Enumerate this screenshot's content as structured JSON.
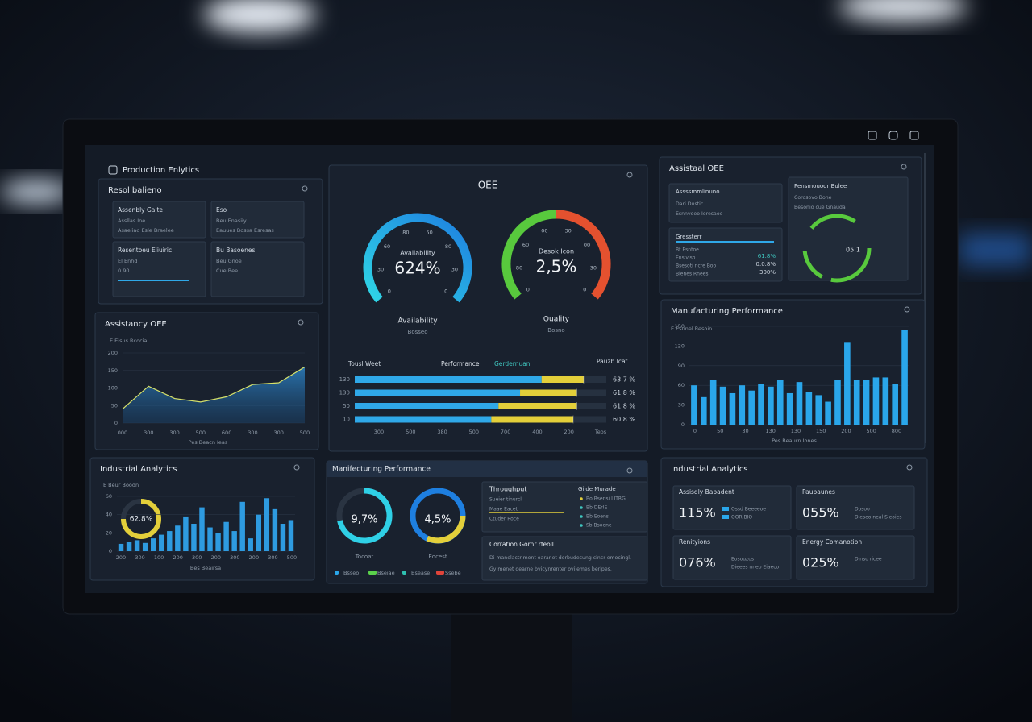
{
  "header": {
    "title": "Production Enlytics"
  },
  "panels": {
    "result": {
      "title": "Resol balieno",
      "cards": [
        {
          "title": "Assenbly Gaite",
          "lines": [
            "Assllas Ine",
            "Asaeliao Esle Braelee"
          ]
        },
        {
          "title": "Eso",
          "lines": [
            "Beu Enasiiy",
            "Eauues Bossa Esresas"
          ]
        },
        {
          "title": "Resentoeu Eliuiric",
          "lines": [
            "El Enhd",
            "0.90"
          ]
        },
        {
          "title": "Bu Basoenes",
          "lines": [
            "Beu Gnoe",
            "Cue Bee"
          ]
        }
      ]
    },
    "assist_oee": {
      "title": "Assistancy OEE",
      "subtitle": "E Eisus Rcocia",
      "x_title": "Pes Beacn Ieas",
      "chart": {
        "type": "area",
        "categories": [
          "000",
          "300",
          "300",
          "500",
          "600",
          "300",
          "300",
          "500"
        ],
        "values": [
          40,
          105,
          70,
          60,
          75,
          110,
          115,
          160
        ],
        "ylim": [
          0,
          200
        ],
        "yticks": [
          0,
          50,
          100,
          150,
          200
        ],
        "color": "#2f8fd8"
      }
    },
    "analytics_left": {
      "title": "Industrial Analytics",
      "subtitle": "E Beur Boodn",
      "donut_label": "62.8%",
      "x_title": "Bes Beairsa",
      "xlabels": [
        "200",
        "300",
        "100",
        "200",
        "300",
        "200",
        "300",
        "200",
        "300",
        "500"
      ],
      "chart": {
        "type": "bar",
        "values": [
          8,
          10,
          12,
          9,
          14,
          18,
          22,
          28,
          38,
          30,
          48,
          26,
          20,
          32,
          22,
          54,
          14,
          40,
          58,
          46,
          30,
          34
        ],
        "ylim": [
          0,
          60
        ],
        "yticks": [
          0,
          20,
          40,
          60
        ],
        "color": "#2e9be0"
      }
    },
    "oee": {
      "title": "OEE",
      "gauges": [
        {
          "inner": "Availability",
          "value_label": "624%",
          "caption": "Availability",
          "sub": "Bosseo",
          "scale": [
            "0",
            "30",
            "60",
            "80",
            "50",
            "80",
            "30",
            "0"
          ]
        },
        {
          "inner": "Desok Icon",
          "value_label": "2,5%",
          "caption": "Quality",
          "sub": "Bosno",
          "scale": [
            "0",
            "80",
            "60",
            "00",
            "30",
            "00",
            "30",
            "0"
          ]
        }
      ],
      "progress": {
        "type": "hbar",
        "left_label": "Tousl Weet",
        "right_title": "Pauzb Icat",
        "row_labels": [
          "130",
          "130",
          "50",
          "10"
        ],
        "series": [
          {
            "name": "Performance",
            "color": "#2fa8e8",
            "values": [
              52,
              46,
              40,
              38
            ]
          },
          {
            "name": "Gerdernuan",
            "color": "#e3cf3a",
            "values": [
              11.7,
              15.8,
              21.8,
              22.8
            ]
          }
        ],
        "totals": [
          63.7,
          61.8,
          61.8,
          60.8
        ],
        "total_labels": [
          "63.7 %",
          "61.8 %",
          "61.8 %",
          "60.8 %"
        ],
        "xlim": [
          0,
          70
        ],
        "xlabels": [
          "300",
          "500",
          "380",
          "500",
          "700",
          "400",
          "200",
          "Teos"
        ]
      }
    },
    "manuf_center": {
      "title": "Manifecturing Performance",
      "donuts": [
        {
          "value_label": "9,7%",
          "caption": "Tocoat"
        },
        {
          "value_label": "4,5%",
          "caption": "Eocest"
        }
      ],
      "legend": [
        "Bsseo",
        "Bseiae",
        "Bsease",
        "Ssebe"
      ],
      "throughput": {
        "title": "Throughput",
        "lines": [
          "Sueier tinurcl",
          "Maae Eacet",
          "Ctuder Roce"
        ],
        "list_title": "Gilde Murade",
        "list": [
          "Bo Bsensi LITRG",
          "Bb DErIE",
          "Bb Eoens",
          "Sb Bsoene"
        ]
      },
      "note": {
        "title": "Corration Gornr rfeoll",
        "lines": [
          "Di manelactriment oaranet dorbudecung cincr emocingl.",
          "Gy menet dearne bvicynrenter ovilemes beripes."
        ]
      }
    },
    "assistant": {
      "title": "Assistaal OEE",
      "card1": {
        "title": "Assssmmlinuno",
        "lines": [
          "Dari Dustic",
          "Esnnvoeo Ieresaoe"
        ]
      },
      "card2": {
        "title": "Gressterr",
        "lines": [
          "Bt Esntoe",
          "Ensiviso",
          "Bsesoti ncre Boo",
          "Bienes Rnees"
        ],
        "values": [
          "61.8%",
          "0.0.8%",
          "300%"
        ]
      },
      "card3": {
        "title": "Pensmouoor Bulee",
        "lines": [
          "Corosovo Bone",
          "Besonio cue Gnauda"
        ],
        "gauge_label": "05:1"
      }
    },
    "manuf_right": {
      "title": "Manufacturing Performance",
      "subtitle": "E Esunel Resoin",
      "x_title": "Pes Beaurn Iones",
      "xlabels": [
        "0",
        "50",
        "30",
        "130",
        "130",
        "150",
        "200",
        "500",
        "800"
      ],
      "chart": {
        "type": "bar",
        "values": [
          60,
          42,
          68,
          58,
          48,
          60,
          52,
          62,
          58,
          68,
          48,
          65,
          50,
          45,
          35,
          68,
          125,
          68,
          68,
          72,
          72,
          62,
          145
        ],
        "ylim": [
          0,
          150
        ],
        "yticks": [
          0,
          30,
          60,
          90,
          120,
          150
        ],
        "color": "#2aa6ea"
      }
    },
    "analytics_right": {
      "title": "Industrial Analytics",
      "kpis": [
        {
          "title": "Assisdly Babadent",
          "value": "115%",
          "lines": [
            "Ossd Beeeeoe",
            "OOR BIO"
          ]
        },
        {
          "title": "Paubaunes",
          "value": "055%",
          "lines": [
            "Dosoo",
            "Dieseo neal Sieoies"
          ]
        },
        {
          "title": "Renityions",
          "value": "076%",
          "lines": [
            "Eosouzos",
            "Dieees nneb Eiaeco"
          ]
        },
        {
          "title": "Energy Comanotion",
          "value": "025%",
          "lines": [
            "Dinso ricee"
          ]
        }
      ]
    }
  }
}
